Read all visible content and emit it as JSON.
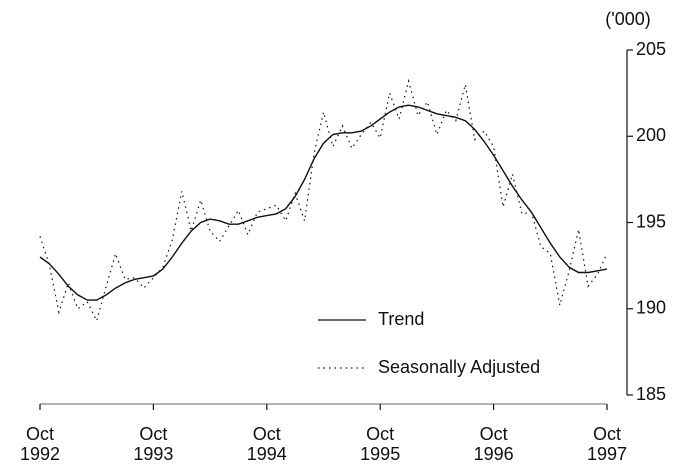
{
  "chart_data": {
    "type": "line",
    "y_axis_label": "('000)",
    "categories": [
      "Oct 1992",
      null,
      null,
      null,
      null,
      null,
      null,
      null,
      null,
      null,
      null,
      null,
      "Oct 1993",
      null,
      null,
      null,
      null,
      null,
      null,
      null,
      null,
      null,
      null,
      null,
      "Oct 1994",
      null,
      null,
      null,
      null,
      null,
      null,
      null,
      null,
      null,
      null,
      null,
      "Oct 1995",
      null,
      null,
      null,
      null,
      null,
      null,
      null,
      null,
      null,
      null,
      null,
      "Oct 1996",
      null,
      null,
      null,
      null,
      null,
      null,
      null,
      null,
      null,
      null,
      null,
      "Oct 1997"
    ],
    "series": [
      {
        "name": "Trend",
        "color": "#111111",
        "style": "solid",
        "values": [
          193.0,
          192.6,
          192.0,
          191.3,
          190.8,
          190.5,
          190.5,
          190.8,
          191.2,
          191.5,
          191.7,
          191.8,
          191.9,
          192.3,
          193.0,
          193.8,
          194.5,
          195.0,
          195.2,
          195.1,
          194.9,
          194.9,
          195.1,
          195.3,
          195.4,
          195.5,
          195.8,
          196.5,
          197.5,
          198.7,
          199.6,
          200.1,
          200.2,
          200.2,
          200.3,
          200.6,
          201.0,
          201.4,
          201.7,
          201.8,
          201.7,
          201.5,
          201.3,
          201.2,
          201.1,
          200.9,
          200.4,
          199.7,
          198.9,
          198.0,
          197.1,
          196.3,
          195.6,
          194.7,
          193.8,
          193.0,
          192.4,
          192.1,
          192.1,
          192.2,
          192.3
        ]
      },
      {
        "name": "Seasonally Adjusted",
        "color": "#111111",
        "style": "dotted",
        "values": [
          194.2,
          192.5,
          189.8,
          191.5,
          190.0,
          190.4,
          189.3,
          191.3,
          193.2,
          191.7,
          191.8,
          191.2,
          191.8,
          192.4,
          194.0,
          196.8,
          194.5,
          196.3,
          194.5,
          193.9,
          194.8,
          195.7,
          194.3,
          195.6,
          195.8,
          196.0,
          195.1,
          196.7,
          195.1,
          199.0,
          201.4,
          199.4,
          200.6,
          199.3,
          200.1,
          200.8,
          199.9,
          202.5,
          201.0,
          203.2,
          201.2,
          202.0,
          200.1,
          201.5,
          200.9,
          203.0,
          199.8,
          200.3,
          199.4,
          195.9,
          197.8,
          195.5,
          195.6,
          193.6,
          193.2,
          190.2,
          192.2,
          194.6,
          191.3,
          192.0,
          193.2
        ]
      }
    ],
    "ylim": [
      185,
      205
    ],
    "yticks": [
      185,
      190,
      195,
      200,
      205
    ],
    "y_axis_side": "right",
    "legend": "lower right"
  }
}
